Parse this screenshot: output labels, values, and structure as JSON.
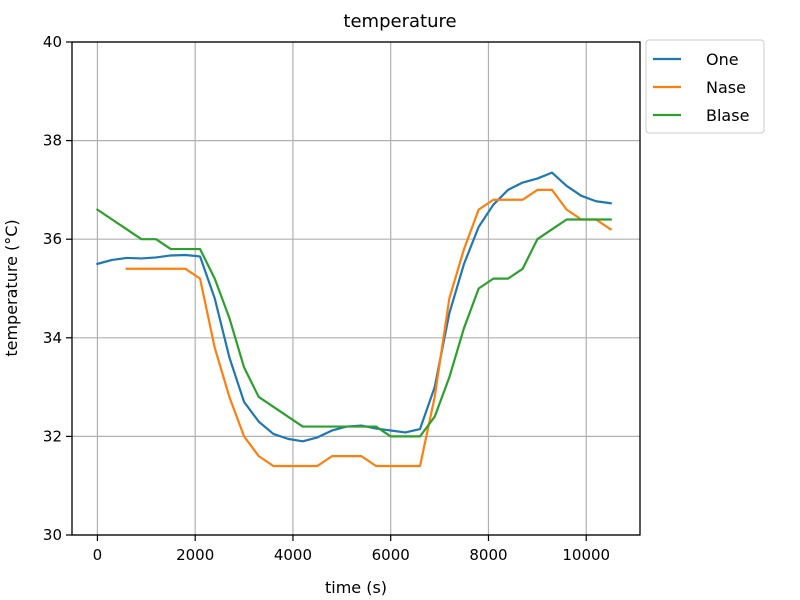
{
  "chart_data": {
    "type": "line",
    "title": "temperature",
    "xlabel": "time (s)",
    "ylabel": "temperature (°C)",
    "xlim": [
      -520,
      11100
    ],
    "ylim": [
      30,
      40
    ],
    "xticks": [
      0,
      2000,
      4000,
      6000,
      8000,
      10000
    ],
    "xtick_labels": [
      "0",
      "2000",
      "4000",
      "6000",
      "8000",
      "10000"
    ],
    "yticks": [
      30,
      32,
      34,
      36,
      38,
      40
    ],
    "ytick_labels": [
      "30",
      "32",
      "34",
      "36",
      "38",
      "40"
    ],
    "grid": true,
    "legend_position": "outside-top-right",
    "series": [
      {
        "name": "One",
        "color": "#1f77b4",
        "x": [
          0,
          300,
          600,
          900,
          1200,
          1500,
          1800,
          2100,
          2400,
          2700,
          3000,
          3300,
          3600,
          3900,
          4200,
          4500,
          4800,
          5100,
          5400,
          5700,
          6000,
          6300,
          6600,
          6900,
          7200,
          7500,
          7800,
          8100,
          8400,
          8700,
          9000,
          9300,
          9600,
          9900,
          10200,
          10500
        ],
        "y": [
          35.5,
          35.58,
          35.62,
          35.61,
          35.63,
          35.67,
          35.68,
          35.65,
          34.8,
          33.6,
          32.7,
          32.3,
          32.05,
          31.95,
          31.9,
          31.98,
          32.12,
          32.2,
          32.22,
          32.16,
          32.12,
          32.08,
          32.15,
          33.0,
          34.5,
          35.5,
          36.25,
          36.7,
          37.0,
          37.15,
          37.23,
          37.35,
          37.08,
          36.88,
          36.77,
          36.73
        ]
      },
      {
        "name": "Nase",
        "color": "#ff7f0e",
        "x": [
          600,
          900,
          1200,
          1500,
          1800,
          2100,
          2400,
          2700,
          3000,
          3300,
          3600,
          3900,
          4200,
          4500,
          4800,
          5100,
          5400,
          5700,
          6000,
          6300,
          6600,
          6900,
          7200,
          7500,
          7800,
          8100,
          8400,
          8700,
          9000,
          9300,
          9600,
          9900,
          10200,
          10500
        ],
        "y": [
          35.4,
          35.4,
          35.4,
          35.4,
          35.4,
          35.2,
          33.8,
          32.8,
          32.0,
          31.6,
          31.4,
          31.4,
          31.4,
          31.4,
          31.6,
          31.6,
          31.6,
          31.4,
          31.4,
          31.4,
          31.4,
          32.8,
          34.8,
          35.8,
          36.6,
          36.8,
          36.8,
          36.8,
          37.0,
          37.0,
          36.6,
          36.4,
          36.4,
          36.2
        ]
      },
      {
        "name": "Blase",
        "color": "#2ca02c",
        "x": [
          0,
          300,
          600,
          900,
          1200,
          1500,
          1800,
          2100,
          2400,
          2700,
          3000,
          3300,
          3600,
          3900,
          4200,
          4500,
          4800,
          5100,
          5400,
          5700,
          6000,
          6300,
          6600,
          6900,
          7200,
          7500,
          7800,
          8100,
          8400,
          8700,
          9000,
          9300,
          9600,
          9900,
          10200,
          10500
        ],
        "y": [
          36.6,
          36.4,
          36.2,
          36.0,
          36.0,
          35.8,
          35.8,
          35.8,
          35.2,
          34.4,
          33.4,
          32.8,
          32.6,
          32.4,
          32.2,
          32.2,
          32.2,
          32.2,
          32.2,
          32.2,
          32.0,
          32.0,
          32.0,
          32.4,
          33.2,
          34.2,
          35.0,
          35.2,
          35.2,
          35.4,
          36.0,
          36.2,
          36.4,
          36.4,
          36.4,
          36.4
        ]
      }
    ]
  }
}
